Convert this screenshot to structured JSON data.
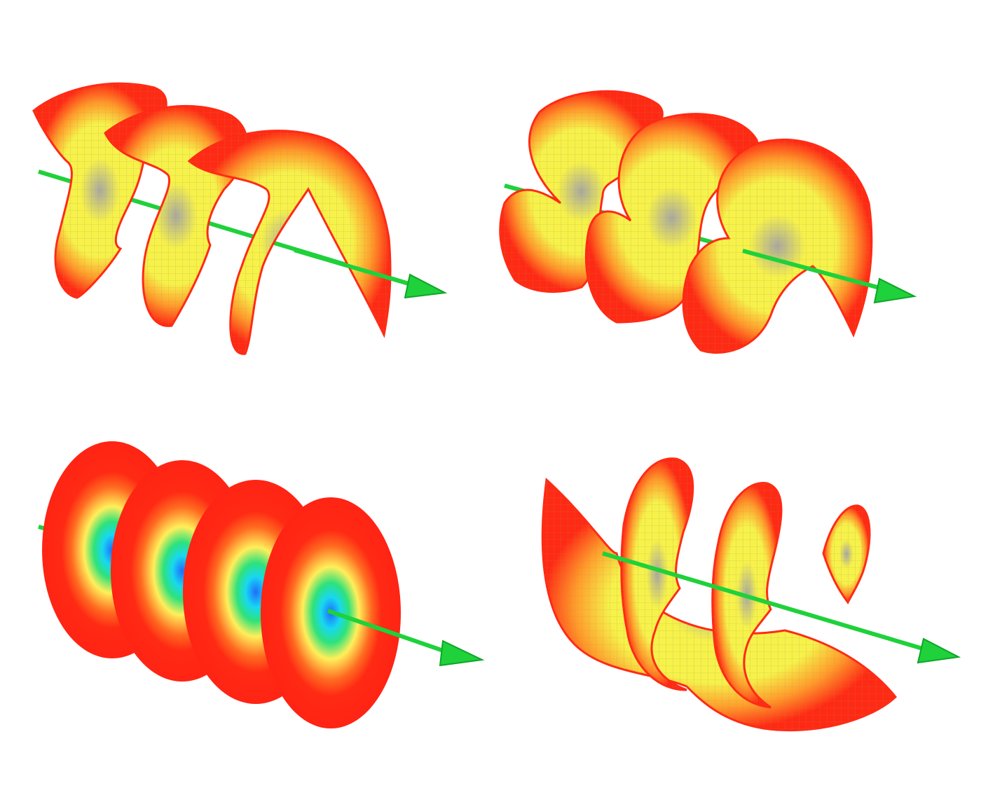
{
  "figure": {
    "background": "#ffffff",
    "colors": {
      "rim": "#ff2a14",
      "inner": "#f6f24a",
      "mid": "#ff9a2a",
      "mesh": "#b08a60",
      "core": "#a8a8a0",
      "axis": "#1fd13a",
      "axis_dark": "#0fa52a",
      "disk_green": "#2ee27a",
      "disk_cyan": "#18d8f0",
      "disk_blue": "#1f6cff",
      "disk_yellow": "#ffef5a"
    },
    "panels": [
      {
        "name": "helix-left-handed-upper-left",
        "kind": "helix",
        "arrow_icon": "green-arrow-icon"
      },
      {
        "name": "helix-upper-right",
        "kind": "helix",
        "arrow_icon": "green-arrow-icon"
      },
      {
        "name": "gaussian-disks-lower-left",
        "kind": "disks",
        "arrow_icon": "green-arrow-icon"
      },
      {
        "name": "helix-lower-right",
        "kind": "helix",
        "arrow_icon": "green-arrow-icon"
      }
    ]
  }
}
